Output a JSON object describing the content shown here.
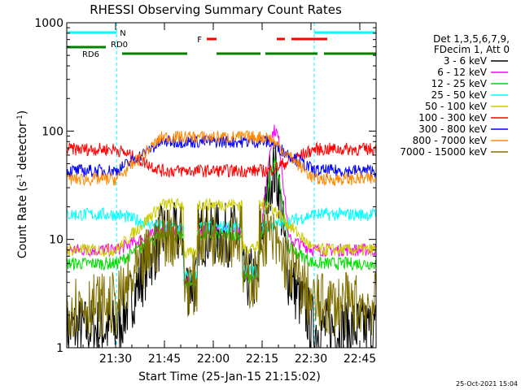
{
  "chart_data": {
    "type": "line",
    "title": "RHESSI Observing Summary Count Rates",
    "xlabel": "Start Time (25-Jan-15 21:15:02)",
    "ylabel": "Count Rate (s",
    "ylabel_exp1": "-1",
    "ylabel_mid": " detector",
    "ylabel_exp2": "-1",
    "ylabel_end": ")",
    "y_scale": "log",
    "ylim": [
      1,
      1000
    ],
    "xlim_minutes_after_2115": [
      0,
      95
    ],
    "x_ticks": [
      {
        "label": "21:30",
        "t": 15
      },
      {
        "label": "21:45",
        "t": 30
      },
      {
        "label": "22:00",
        "t": 45
      },
      {
        "label": "22:15",
        "t": 60
      },
      {
        "label": "22:30",
        "t": 75
      },
      {
        "label": "22:45",
        "t": 90
      }
    ],
    "y_ticks": [
      {
        "label": "1",
        "v": 1
      },
      {
        "label": "10",
        "v": 10
      },
      {
        "label": "100",
        "v": 100
      },
      {
        "label": "1000",
        "v": 1000
      }
    ],
    "legend_header": [
      "Det 1,3,5,6,7,9,",
      "FDecim 1, Att 0"
    ],
    "series": [
      {
        "name": "3 - 6 keV",
        "color": "#000000",
        "night": 1.5,
        "day": 11
      },
      {
        "name": "6 - 12 keV",
        "color": "#ff00ff",
        "night": 8,
        "day": 12
      },
      {
        "name": "12 - 25 keV",
        "color": "#00dd00",
        "night": 6,
        "day": 11
      },
      {
        "name": "25 - 50 keV",
        "color": "#00ffff",
        "night": 17,
        "day": 13
      },
      {
        "name": "50 - 100 keV",
        "color": "#cccc00",
        "night": 8,
        "day": 21
      },
      {
        "name": "100 - 300 keV",
        "color": "#ff0000",
        "night": 68,
        "day": 43
      },
      {
        "name": "300 - 800 keV",
        "color": "#0000ff",
        "night": 43,
        "day": 80
      },
      {
        "name": "800 - 7000 keV",
        "color": "#ff8800",
        "night": 36,
        "day": 88
      },
      {
        "name": "7000 - 15000 keV",
        "color": "#807000",
        "night": 2.5,
        "day": 11
      }
    ],
    "flags": {
      "night_label": "N",
      "flare_label": "F",
      "rd0_label": "RD0",
      "rd6_label": "RD6",
      "colors": {
        "night": "#00ffff",
        "flare": "#ff0000",
        "rd": "#008000"
      }
    },
    "night_boundaries_minutes": [
      15.3,
      76.0
    ],
    "footer_date": "25-Oct-2021 15:04"
  }
}
